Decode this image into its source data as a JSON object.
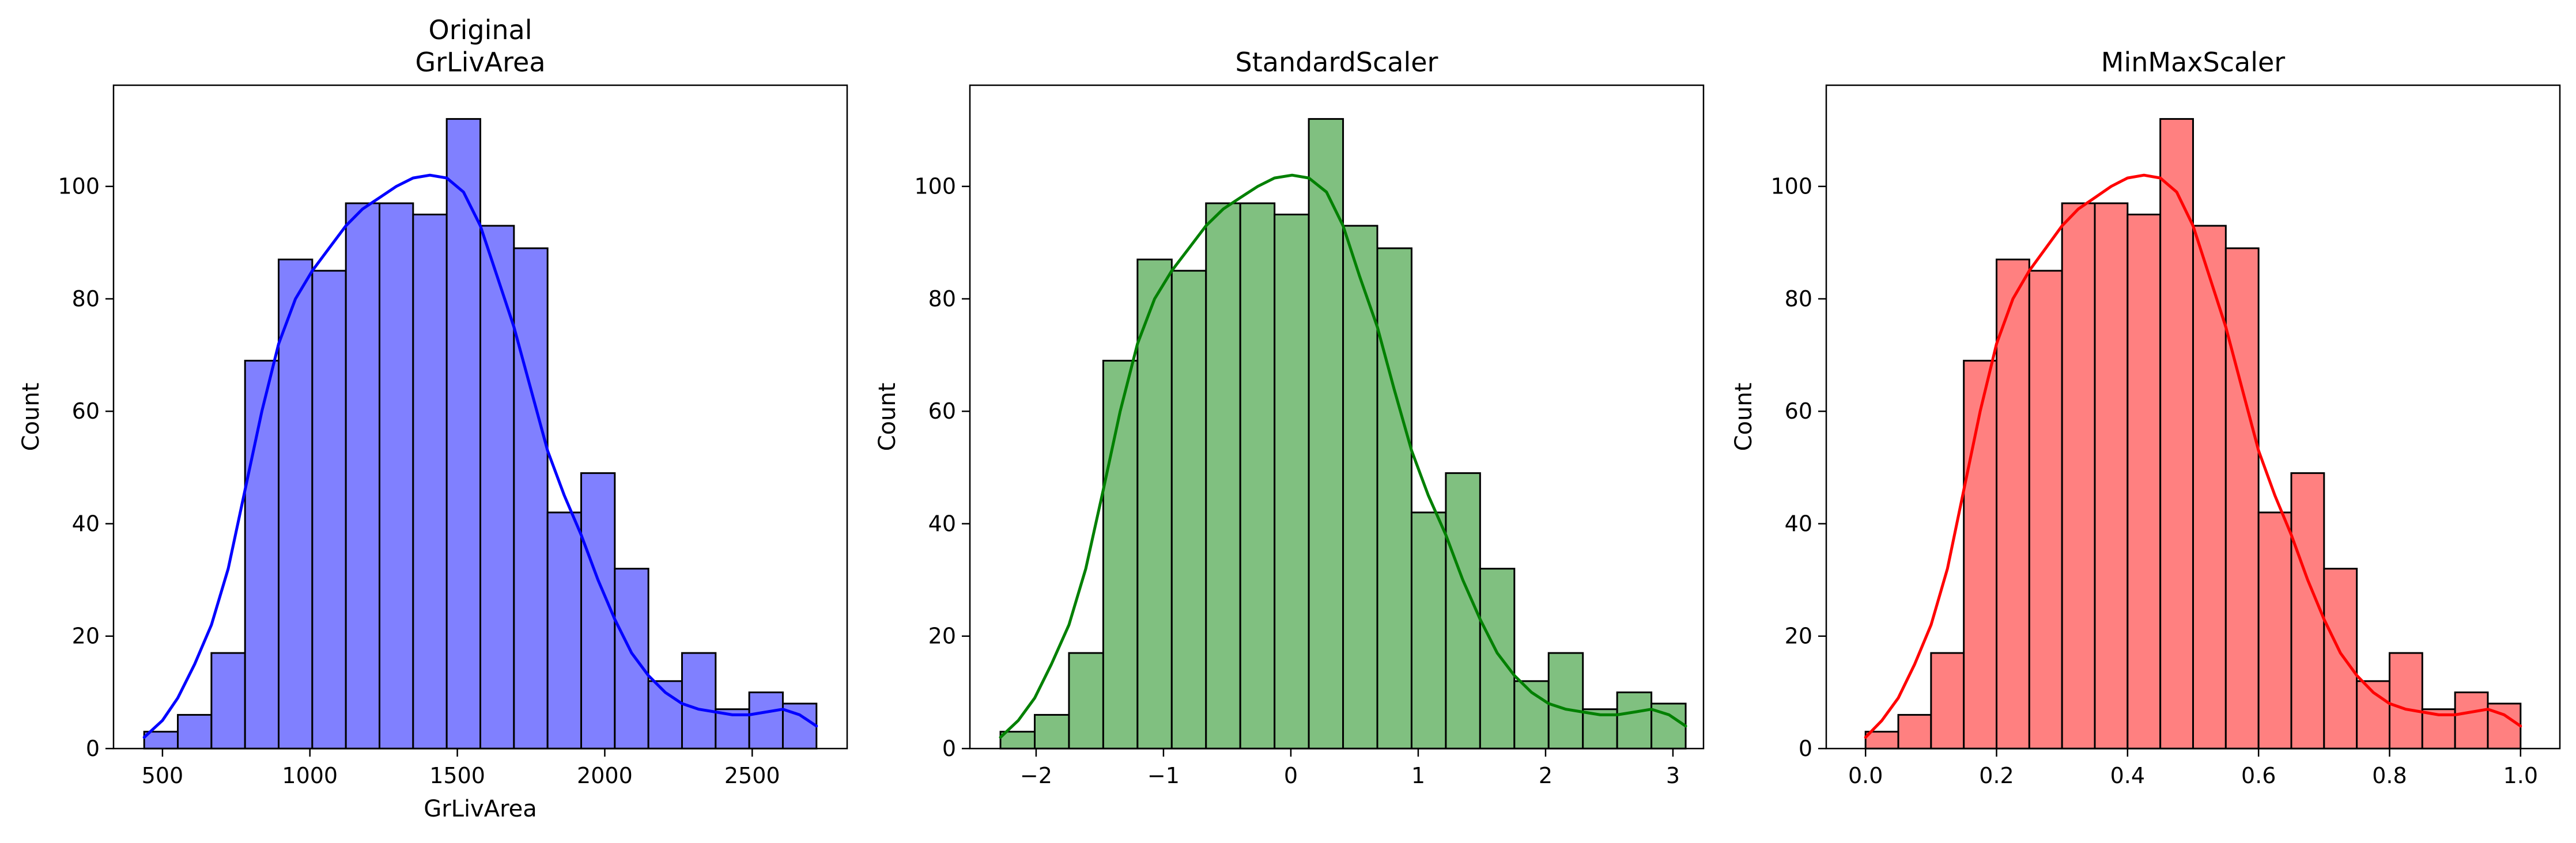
{
  "chart_data": [
    {
      "type": "bar",
      "title_lines": [
        "Original",
        "GrLivArea"
      ],
      "xlabel": "GrLivArea",
      "ylabel": "Count",
      "color": "#0000ff",
      "bar_fill": "#8080ff",
      "xlim": [
        334,
        2822
      ],
      "ylim": [
        0,
        118
      ],
      "x_ticks": [
        500,
        1000,
        1500,
        2000,
        2500
      ],
      "x_tick_labels": [
        "500",
        "1000",
        "1500",
        "2000",
        "2500"
      ],
      "y_ticks": [
        0,
        20,
        40,
        60,
        80,
        100
      ],
      "y_tick_labels": [
        "0",
        "20",
        "40",
        "60",
        "80",
        "100"
      ],
      "bin_edges": [
        438,
        552,
        666,
        780,
        894,
        1008,
        1122,
        1236,
        1350,
        1464,
        1578,
        1692,
        1806,
        1920,
        2034,
        2148,
        2262,
        2376,
        2490,
        2604,
        2718
      ],
      "counts": [
        3,
        6,
        17,
        69,
        87,
        85,
        97,
        97,
        95,
        112,
        93,
        89,
        42,
        49,
        32,
        12,
        17,
        7,
        10,
        8
      ],
      "kde": {
        "x": [
          438,
          500,
          552,
          609,
          666,
          723,
          780,
          837,
          894,
          951,
          1008,
          1065,
          1122,
          1179,
          1236,
          1293,
          1350,
          1407,
          1464,
          1521,
          1578,
          1635,
          1692,
          1749,
          1806,
          1863,
          1920,
          1977,
          2034,
          2091,
          2148,
          2205,
          2262,
          2319,
          2376,
          2433,
          2490,
          2547,
          2604,
          2661,
          2718
        ],
        "y": [
          2,
          5,
          9,
          15,
          22,
          32,
          46,
          60,
          72,
          80,
          85,
          89,
          93,
          96,
          98,
          100,
          101.5,
          102,
          101.5,
          99,
          93,
          84,
          75,
          64,
          53,
          45,
          38,
          30,
          23,
          17,
          13,
          10,
          8,
          7,
          6.5,
          6,
          6,
          6.5,
          7,
          6,
          4
        ]
      }
    },
    {
      "type": "bar",
      "title_lines": [
        "StandardScaler"
      ],
      "xlabel": "",
      "ylabel": "Count",
      "color": "#008000",
      "bar_fill": "#80c080",
      "xlim": [
        -2.52,
        3.24
      ],
      "ylim": [
        0,
        118
      ],
      "x_ticks": [
        -2,
        -1,
        0,
        1,
        2,
        3
      ],
      "x_tick_labels": [
        "−2",
        "−1",
        "0",
        "1",
        "2",
        "3"
      ],
      "y_ticks": [
        0,
        20,
        40,
        60,
        80,
        100
      ],
      "y_tick_labels": [
        "0",
        "20",
        "40",
        "60",
        "80",
        "100"
      ],
      "bin_edges": [
        -2.28,
        -2.011,
        -1.742,
        -1.473,
        -1.204,
        -0.935,
        -0.666,
        -0.397,
        -0.128,
        0.141,
        0.41,
        0.679,
        0.948,
        1.217,
        1.486,
        1.755,
        2.024,
        2.293,
        2.562,
        2.831,
        3.1
      ],
      "counts": [
        3,
        6,
        17,
        69,
        87,
        85,
        97,
        97,
        95,
        112,
        93,
        89,
        42,
        49,
        32,
        12,
        17,
        7,
        10,
        8
      ],
      "kde": {
        "x": [
          -2.28,
          -2.14,
          -2.011,
          -1.88,
          -1.742,
          -1.61,
          -1.473,
          -1.34,
          -1.204,
          -1.07,
          -0.935,
          -0.8,
          -0.666,
          -0.53,
          -0.397,
          -0.26,
          -0.128,
          0.01,
          0.141,
          0.28,
          0.41,
          0.54,
          0.679,
          0.81,
          0.948,
          1.08,
          1.217,
          1.35,
          1.486,
          1.62,
          1.755,
          1.89,
          2.024,
          2.16,
          2.293,
          2.43,
          2.562,
          2.7,
          2.831,
          2.97,
          3.1
        ],
        "y": [
          2,
          5,
          9,
          15,
          22,
          32,
          46,
          60,
          72,
          80,
          85,
          89,
          93,
          96,
          98,
          100,
          101.5,
          102,
          101.5,
          99,
          93,
          84,
          75,
          64,
          53,
          45,
          38,
          30,
          23,
          17,
          13,
          10,
          8,
          7,
          6.5,
          6,
          6,
          6.5,
          7,
          6,
          4
        ]
      }
    },
    {
      "type": "bar",
      "title_lines": [
        "MinMaxScaler"
      ],
      "xlabel": "",
      "ylabel": "Count",
      "color": "#ff0000",
      "bar_fill": "#ff8080",
      "xlim": [
        -0.06,
        1.06
      ],
      "ylim": [
        0,
        118
      ],
      "x_ticks": [
        0.0,
        0.2,
        0.4,
        0.6,
        0.8,
        1.0
      ],
      "x_tick_labels": [
        "0.0",
        "0.2",
        "0.4",
        "0.6",
        "0.8",
        "1.0"
      ],
      "y_ticks": [
        0,
        20,
        40,
        60,
        80,
        100
      ],
      "y_tick_labels": [
        "0",
        "20",
        "40",
        "60",
        "80",
        "100"
      ],
      "bin_edges": [
        0.0,
        0.05,
        0.1,
        0.15,
        0.2,
        0.25,
        0.3,
        0.35,
        0.4,
        0.45,
        0.5,
        0.55,
        0.6,
        0.65,
        0.7,
        0.75,
        0.8,
        0.85,
        0.9,
        0.95,
        1.0
      ],
      "counts": [
        3,
        6,
        17,
        69,
        87,
        85,
        97,
        97,
        95,
        112,
        93,
        89,
        42,
        49,
        32,
        12,
        17,
        7,
        10,
        8
      ],
      "kde": {
        "x": [
          0.0,
          0.025,
          0.05,
          0.075,
          0.1,
          0.125,
          0.15,
          0.175,
          0.2,
          0.225,
          0.25,
          0.275,
          0.3,
          0.325,
          0.35,
          0.375,
          0.4,
          0.425,
          0.45,
          0.475,
          0.5,
          0.525,
          0.55,
          0.575,
          0.6,
          0.625,
          0.65,
          0.675,
          0.7,
          0.725,
          0.75,
          0.775,
          0.8,
          0.825,
          0.85,
          0.875,
          0.9,
          0.925,
          0.95,
          0.975,
          1.0
        ],
        "y": [
          2,
          5,
          9,
          15,
          22,
          32,
          46,
          60,
          72,
          80,
          85,
          89,
          93,
          96,
          98,
          100,
          101.5,
          102,
          101.5,
          99,
          93,
          84,
          75,
          64,
          53,
          45,
          38,
          30,
          23,
          17,
          13,
          10,
          8,
          7,
          6.5,
          6,
          6,
          6.5,
          7,
          6,
          4
        ]
      }
    }
  ]
}
